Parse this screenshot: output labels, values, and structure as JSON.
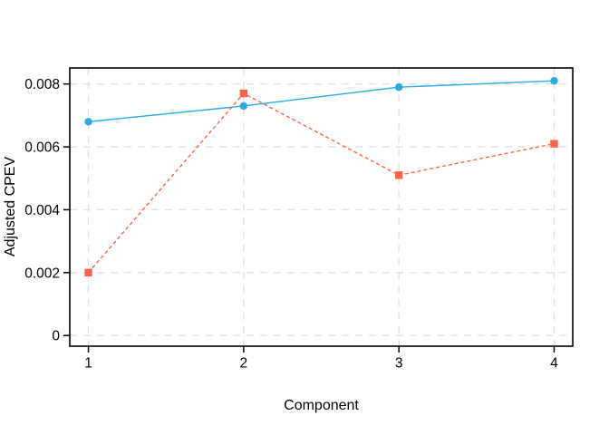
{
  "chart_data": {
    "type": "line",
    "title": "",
    "xlabel": "Component",
    "ylabel": "Adjusted CPEV",
    "x": [
      1,
      2,
      3,
      4
    ],
    "xtick_labels": [
      "1",
      "2",
      "3",
      "4"
    ],
    "ytick_values": [
      0,
      0.002,
      0.004,
      0.006,
      0.008
    ],
    "ytick_labels": [
      "0",
      "0.002",
      "0.004",
      "0.006",
      "0.008"
    ],
    "xlim": [
      0.88,
      4.12
    ],
    "ylim": [
      -0.00034,
      0.00851
    ],
    "grid": true,
    "legend": "none",
    "series": [
      {
        "name": "blue-series",
        "color": "#29ABE2",
        "marker": "circle",
        "line_style": "solid",
        "values": [
          0.0068,
          0.0073,
          0.0079,
          0.0081
        ]
      },
      {
        "name": "red-series",
        "color": "#FF6347",
        "marker": "square",
        "line_style": "dashed",
        "values": [
          0.002,
          0.0077,
          0.0051,
          0.0061
        ]
      }
    ]
  },
  "colors": {
    "background": "#FFFFFF",
    "axis": "#000000",
    "grid": "#E1E1E1",
    "text": "#000000"
  }
}
